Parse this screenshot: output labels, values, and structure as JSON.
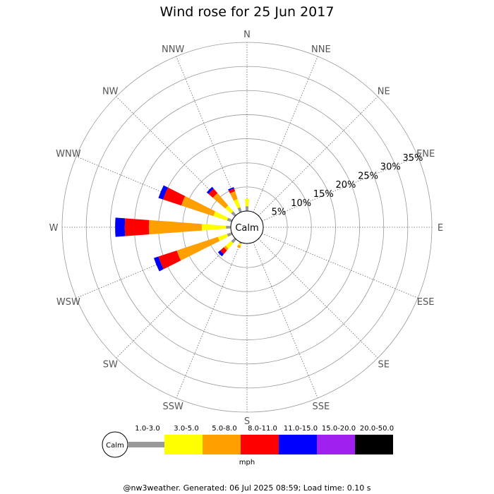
{
  "header": {
    "title": "Wind rose for 25 Jun 2017"
  },
  "footer": {
    "text": "@nw3weather. Generated: 06 Jul 2025 08:59; Load time: 0.10 s"
  },
  "chart_data": {
    "type": "windrose",
    "title": "Wind rose for 25 Jun 2017",
    "directions": [
      "N",
      "NNE",
      "NE",
      "ENE",
      "E",
      "ESE",
      "SE",
      "SSE",
      "S",
      "SSW",
      "SW",
      "WSW",
      "W",
      "WNW",
      "NW",
      "NNW"
    ],
    "radial_ticks": [
      "5%",
      "10%",
      "15%",
      "20%",
      "25%",
      "30%",
      "35%"
    ],
    "radial_tick_values": [
      5,
      10,
      15,
      20,
      25,
      30,
      35
    ],
    "rmax": 35,
    "calm_label": "Calm",
    "speed_bins": [
      "1.0-3.0",
      "3.0-5.0",
      "5.0-8.0",
      "8.0-11.0",
      "11.0-15.0",
      "15.0-20.0",
      "20.0-50.0"
    ],
    "colors": [
      "#999999",
      "#ffff00",
      "#ff9f00",
      "#ff0000",
      "#0000ff",
      "#a020f0",
      "#000000"
    ],
    "unit": "mph",
    "grid": true,
    "series": [
      {
        "direction": "N",
        "values": [
          1.0,
          1.5,
          0,
          0,
          0,
          0,
          0
        ]
      },
      {
        "direction": "NNE",
        "values": [
          0,
          0,
          0,
          0,
          0,
          0,
          0
        ]
      },
      {
        "direction": "NE",
        "values": [
          0,
          0,
          0,
          0,
          0,
          0,
          0
        ]
      },
      {
        "direction": "ENE",
        "values": [
          0,
          0,
          0,
          0,
          0,
          0,
          0
        ]
      },
      {
        "direction": "E",
        "values": [
          0,
          0,
          0,
          0,
          0,
          0,
          0
        ]
      },
      {
        "direction": "ESE",
        "values": [
          0,
          0,
          0,
          0,
          0,
          0,
          0
        ]
      },
      {
        "direction": "SE",
        "values": [
          0,
          0,
          0,
          0,
          0,
          0,
          0
        ]
      },
      {
        "direction": "SSE",
        "values": [
          0,
          0,
          0,
          0,
          0,
          0,
          0
        ]
      },
      {
        "direction": "S",
        "values": [
          0,
          0,
          0,
          0,
          0,
          0,
          0
        ]
      },
      {
        "direction": "SSW",
        "values": [
          0.3,
          0.4,
          0.5,
          0,
          0,
          0,
          0
        ]
      },
      {
        "direction": "SW",
        "values": [
          1.0,
          1.5,
          0.5,
          1.0,
          0.6,
          0,
          0
        ]
      },
      {
        "direction": "WSW",
        "values": [
          1.0,
          2.0,
          9.0,
          4.0,
          1.0,
          0,
          0
        ]
      },
      {
        "direction": "W",
        "values": [
          1.0,
          5.0,
          11.0,
          5.0,
          2.0,
          0,
          0
        ]
      },
      {
        "direction": "WNW",
        "values": [
          1.0,
          3.0,
          7.0,
          4.0,
          1.0,
          0,
          0
        ]
      },
      {
        "direction": "NW",
        "values": [
          1.0,
          1.6,
          3.4,
          1.2,
          0.5,
          0,
          0
        ]
      },
      {
        "direction": "NNW",
        "values": [
          1.0,
          1.8,
          1.7,
          0.6,
          0.3,
          0,
          0
        ]
      }
    ]
  }
}
